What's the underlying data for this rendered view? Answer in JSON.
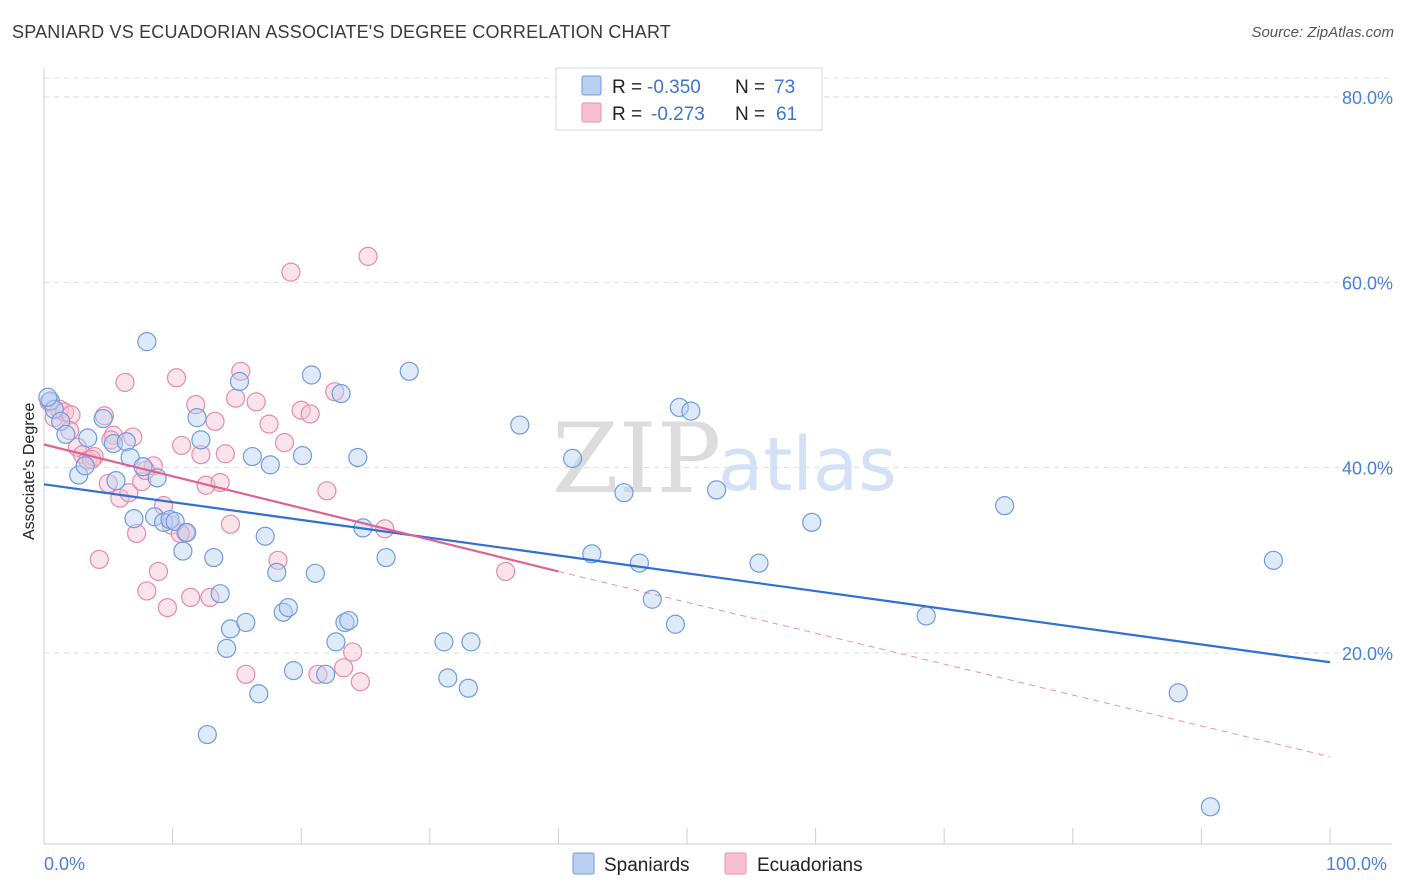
{
  "header": {
    "title": "SPANIARD VS ECUADORIAN ASSOCIATE'S DEGREE CORRELATION CHART",
    "source": "Source: ZipAtlas.com"
  },
  "watermark": {
    "zip": "ZIP",
    "atlas": "atlas"
  },
  "colors": {
    "blue": "#2f6fd6",
    "blue_fill": "#b9d0f2",
    "pink": "#e0628f",
    "pink_fill": "#f7c0d3",
    "grid": "#dddddd",
    "tick_text": "#4a7fd4"
  },
  "chart_data": {
    "type": "scatter",
    "title": "SPANIARD VS ECUADORIAN ASSOCIATE'S DEGREE CORRELATION CHART",
    "xlabel": "",
    "ylabel": "Associate's Degree",
    "xlim": [
      0,
      100
    ],
    "ylim": [
      0,
      80
    ],
    "x_tick_labels": [
      "0.0%",
      "100.0%"
    ],
    "y_ticks": [
      20,
      40,
      60,
      80
    ],
    "y_tick_labels": [
      "20.0%",
      "40.0%",
      "60.0%",
      "80.0%"
    ],
    "grid": true,
    "legend_position": "top-center",
    "legend": [
      {
        "name": "Spaniards",
        "r_label": "R =",
        "r_value": "-0.350",
        "n_label": "N =",
        "n_value": "73"
      },
      {
        "name": "Ecuadorians",
        "r_label": "R =",
        "r_value": "-0.273",
        "n_label": "N =",
        "n_value": "61"
      }
    ],
    "series": [
      {
        "name": "Spaniards",
        "color": "#2f6fd6",
        "trend": {
          "x": [
            0,
            100
          ],
          "y": [
            38.2,
            19.0
          ],
          "dashed_extension": false
        },
        "points": [
          [
            0.5,
            47.2
          ],
          [
            0.8,
            46.3
          ],
          [
            1.3,
            45.0
          ],
          [
            1.7,
            43.6
          ],
          [
            2.7,
            39.2
          ],
          [
            3.4,
            43.2
          ],
          [
            4.6,
            45.3
          ],
          [
            5.4,
            42.6
          ],
          [
            5.6,
            38.6
          ],
          [
            6.4,
            42.8
          ],
          [
            6.7,
            41.1
          ],
          [
            7.0,
            34.5
          ],
          [
            7.7,
            40.1
          ],
          [
            8.0,
            53.6
          ],
          [
            8.6,
            34.7
          ],
          [
            8.8,
            38.9
          ],
          [
            9.3,
            34.1
          ],
          [
            9.8,
            34.4
          ],
          [
            10.2,
            34.2
          ],
          [
            10.8,
            31.0
          ],
          [
            11.1,
            33.0
          ],
          [
            11.9,
            45.4
          ],
          [
            12.2,
            43.0
          ],
          [
            12.7,
            11.2
          ],
          [
            13.2,
            30.3
          ],
          [
            13.7,
            26.4
          ],
          [
            14.2,
            20.5
          ],
          [
            14.5,
            22.6
          ],
          [
            15.2,
            49.3
          ],
          [
            15.7,
            23.3
          ],
          [
            16.2,
            41.2
          ],
          [
            16.7,
            15.6
          ],
          [
            17.2,
            32.6
          ],
          [
            17.6,
            40.3
          ],
          [
            18.1,
            28.7
          ],
          [
            18.6,
            24.4
          ],
          [
            19.0,
            24.9
          ],
          [
            19.4,
            18.1
          ],
          [
            20.1,
            41.3
          ],
          [
            20.8,
            50.0
          ],
          [
            21.1,
            28.6
          ],
          [
            21.9,
            17.7
          ],
          [
            22.7,
            21.2
          ],
          [
            23.1,
            48.0
          ],
          [
            23.4,
            23.3
          ],
          [
            23.7,
            23.5
          ],
          [
            24.4,
            41.1
          ],
          [
            24.8,
            33.5
          ],
          [
            26.6,
            30.3
          ],
          [
            28.4,
            50.4
          ],
          [
            31.1,
            21.2
          ],
          [
            31.4,
            17.3
          ],
          [
            33.2,
            21.2
          ],
          [
            33.0,
            16.2
          ],
          [
            37.0,
            44.6
          ],
          [
            41.1,
            41.0
          ],
          [
            42.6,
            30.7
          ],
          [
            45.1,
            37.3
          ],
          [
            46.3,
            29.7
          ],
          [
            47.3,
            25.8
          ],
          [
            49.1,
            23.1
          ],
          [
            49.4,
            46.5
          ],
          [
            50.3,
            46.1
          ],
          [
            52.3,
            37.6
          ],
          [
            55.6,
            29.7
          ],
          [
            59.7,
            34.1
          ],
          [
            68.6,
            24.0
          ],
          [
            74.7,
            35.9
          ],
          [
            88.2,
            15.7
          ],
          [
            90.7,
            3.4
          ],
          [
            95.6,
            30.0
          ],
          [
            0.3,
            47.6
          ],
          [
            3.2,
            40.2
          ]
        ]
      },
      {
        "name": "Ecuadorians",
        "color": "#e0628f",
        "trend": {
          "x": [
            0,
            40
          ],
          "y": [
            42.5,
            28.8
          ],
          "dashed_to": [
            100,
            8.8
          ]
        },
        "points": [
          [
            0.4,
            47.1
          ],
          [
            0.8,
            45.4
          ],
          [
            1.2,
            46.3
          ],
          [
            1.6,
            46.0
          ],
          [
            2.1,
            45.7
          ],
          [
            2.6,
            42.2
          ],
          [
            3.0,
            41.4
          ],
          [
            3.4,
            40.8
          ],
          [
            3.9,
            41.2
          ],
          [
            4.3,
            30.1
          ],
          [
            4.7,
            45.6
          ],
          [
            5.0,
            38.3
          ],
          [
            5.4,
            43.5
          ],
          [
            5.9,
            36.7
          ],
          [
            6.3,
            49.2
          ],
          [
            6.6,
            37.3
          ],
          [
            6.9,
            43.3
          ],
          [
            7.2,
            32.9
          ],
          [
            7.6,
            38.5
          ],
          [
            8.0,
            26.7
          ],
          [
            8.5,
            40.2
          ],
          [
            8.9,
            28.8
          ],
          [
            9.3,
            35.9
          ],
          [
            9.6,
            24.9
          ],
          [
            9.9,
            33.8
          ],
          [
            10.3,
            49.7
          ],
          [
            10.7,
            42.4
          ],
          [
            11.0,
            33.0
          ],
          [
            11.4,
            26.0
          ],
          [
            11.8,
            46.8
          ],
          [
            12.2,
            41.4
          ],
          [
            12.6,
            38.1
          ],
          [
            12.9,
            26.0
          ],
          [
            13.3,
            45.0
          ],
          [
            13.7,
            38.4
          ],
          [
            14.1,
            41.5
          ],
          [
            14.5,
            33.9
          ],
          [
            14.9,
            47.5
          ],
          [
            15.3,
            50.4
          ],
          [
            15.7,
            17.7
          ],
          [
            16.5,
            47.1
          ],
          [
            17.5,
            44.7
          ],
          [
            18.2,
            30.0
          ],
          [
            18.7,
            42.7
          ],
          [
            19.2,
            61.1
          ],
          [
            20.0,
            46.2
          ],
          [
            20.7,
            45.8
          ],
          [
            21.3,
            17.7
          ],
          [
            22.0,
            37.5
          ],
          [
            22.6,
            48.2
          ],
          [
            23.3,
            18.4
          ],
          [
            24.0,
            20.1
          ],
          [
            24.6,
            16.9
          ],
          [
            25.2,
            62.8
          ],
          [
            26.5,
            33.4
          ],
          [
            35.9,
            28.8
          ],
          [
            2.0,
            44.0
          ],
          [
            3.7,
            40.9
          ],
          [
            5.2,
            43.0
          ],
          [
            7.9,
            39.7
          ],
          [
            10.6,
            32.9
          ]
        ]
      }
    ]
  }
}
